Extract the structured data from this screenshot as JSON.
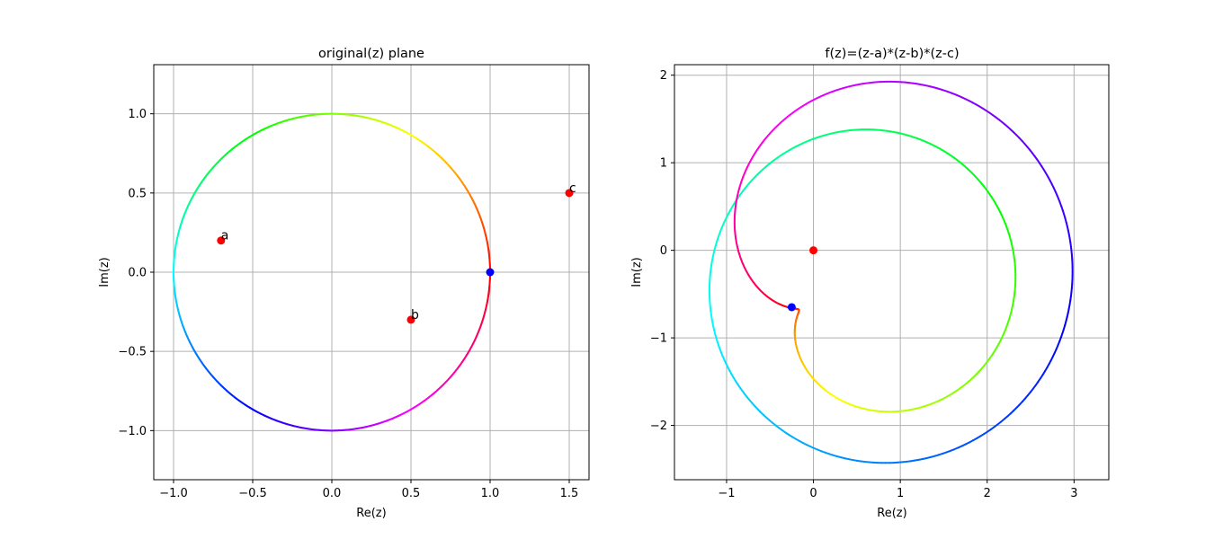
{
  "chart_data": [
    {
      "type": "line",
      "title": "original(z) plane",
      "xlabel": "Re(z)",
      "ylabel": "Im(z)",
      "xlim": [
        -1.125,
        1.625
      ],
      "ylim": [
        -1.31,
        1.31
      ],
      "xticks": [
        -1.0,
        -0.5,
        0.0,
        0.5,
        1.0,
        1.5
      ],
      "xtick_labels": [
        "−1.0",
        "−0.5",
        "0.0",
        "0.5",
        "1.0",
        "1.5"
      ],
      "yticks": [
        -1.0,
        -0.5,
        0.0,
        0.5,
        1.0
      ],
      "ytick_labels": [
        "−1.0",
        "−0.5",
        "0.0",
        "0.5",
        "1.0"
      ],
      "grid": true,
      "curve": "unit circle z = e^{iθ}, θ from 0 to 2π, colored by hue of θ",
      "points": [
        {
          "label": "a",
          "x": -0.7,
          "y": 0.2,
          "color": "#ff0000"
        },
        {
          "label": "b",
          "x": 0.5,
          "y": -0.3,
          "color": "#ff0000"
        },
        {
          "label": "c",
          "x": 1.5,
          "y": 0.5,
          "color": "#ff0000"
        },
        {
          "label": "",
          "x": 1.0,
          "y": 0.0,
          "color": "#0000ff"
        }
      ]
    },
    {
      "type": "line",
      "title": "f(z)=(z-a)*(z-b)*(z-c)",
      "xlabel": "Re(z)",
      "ylabel": "Im(z)",
      "xlim": [
        -1.6,
        3.4
      ],
      "ylim": [
        -2.62,
        2.12
      ],
      "xticks": [
        -1,
        0,
        1,
        2,
        3
      ],
      "xtick_labels": [
        "−1",
        "0",
        "1",
        "2",
        "3"
      ],
      "yticks": [
        -2,
        -1,
        0,
        1,
        2
      ],
      "ytick_labels": [
        "−2",
        "−1",
        "0",
        "1",
        "2"
      ],
      "grid": true,
      "curve": "image of the unit circle under f, colored by hue of θ",
      "points": [
        {
          "label": "",
          "x": 0.0,
          "y": 0.0,
          "color": "#ff0000"
        },
        {
          "label": "",
          "x": -0.25,
          "y": -0.65,
          "color": "#0000ff"
        }
      ]
    }
  ],
  "constants": {
    "a": [
      -0.7,
      0.2
    ],
    "b": [
      0.5,
      -0.3
    ],
    "c": [
      1.5,
      0.5
    ]
  }
}
